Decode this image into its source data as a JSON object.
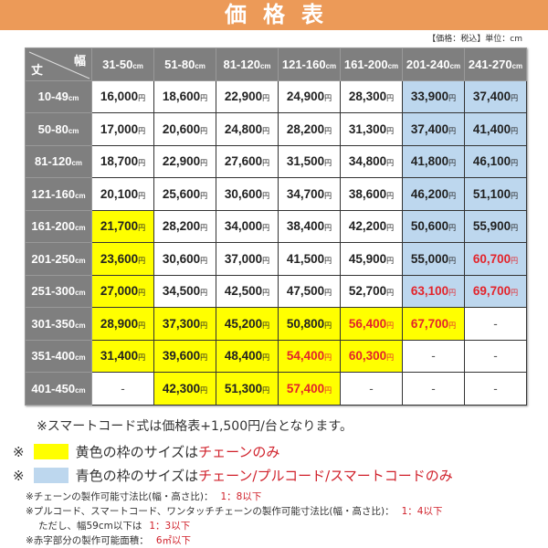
{
  "title": "価格表",
  "unit_note": "【価格：税込】単位：cm",
  "corner": {
    "width_label": "幅",
    "height_label": "丈"
  },
  "unit_cm": "cm",
  "currency": "円",
  "colors": {
    "white": "#ffffff",
    "yellow": "#ffff00",
    "blue": "#bdd7ee",
    "red_text": "#e3242b",
    "header": "#7f7f7f",
    "title_bar": "#ec9a58"
  },
  "columns": [
    "31-50",
    "51-80",
    "81-120",
    "121-160",
    "161-200",
    "201-240",
    "241-270"
  ],
  "rows": [
    {
      "label": "10-49",
      "values": [
        "16,000",
        "18,600",
        "22,900",
        "24,900",
        "28,300",
        "33,900",
        "37,400"
      ],
      "fills": "wwwwwbb",
      "red": [
        0,
        0,
        0,
        0,
        0,
        0,
        0
      ]
    },
    {
      "label": "50-80",
      "values": [
        "17,000",
        "20,600",
        "24,800",
        "28,200",
        "31,300",
        "37,400",
        "41,400"
      ],
      "fills": "wwwwwbb",
      "red": [
        0,
        0,
        0,
        0,
        0,
        0,
        0
      ]
    },
    {
      "label": "81-120",
      "values": [
        "18,700",
        "22,900",
        "27,600",
        "31,500",
        "34,800",
        "41,800",
        "46,100"
      ],
      "fills": "wwwwwbb",
      "red": [
        0,
        0,
        0,
        0,
        0,
        0,
        0
      ]
    },
    {
      "label": "121-160",
      "values": [
        "20,100",
        "25,600",
        "30,600",
        "34,700",
        "38,600",
        "46,200",
        "51,100"
      ],
      "fills": "wwwwwbb",
      "red": [
        0,
        0,
        0,
        0,
        0,
        0,
        0
      ]
    },
    {
      "label": "161-200",
      "values": [
        "21,700",
        "28,200",
        "34,000",
        "38,400",
        "42,200",
        "50,600",
        "55,900"
      ],
      "fills": "ywwwwbb",
      "red": [
        0,
        0,
        0,
        0,
        0,
        0,
        0
      ]
    },
    {
      "label": "201-250",
      "values": [
        "23,600",
        "30,600",
        "37,000",
        "41,500",
        "45,900",
        "55,000",
        "60,700"
      ],
      "fills": "ywwwwbb",
      "red": [
        0,
        0,
        0,
        0,
        0,
        0,
        1
      ]
    },
    {
      "label": "251-300",
      "values": [
        "27,000",
        "34,500",
        "42,500",
        "47,500",
        "52,700",
        "63,100",
        "69,700"
      ],
      "fills": "ywwwwbb",
      "red": [
        0,
        0,
        0,
        0,
        0,
        1,
        1
      ]
    },
    {
      "label": "301-350",
      "values": [
        "28,900",
        "37,300",
        "45,200",
        "50,800",
        "56,400",
        "67,700",
        "-"
      ],
      "fills": "yyyyyyw",
      "red": [
        0,
        0,
        0,
        0,
        1,
        1,
        0
      ]
    },
    {
      "label": "351-400",
      "values": [
        "31,400",
        "39,600",
        "48,400",
        "54,400",
        "60,300",
        "-",
        "-"
      ],
      "fills": "yyyyyww",
      "red": [
        0,
        0,
        0,
        1,
        1,
        0,
        0
      ]
    },
    {
      "label": "401-450",
      "values": [
        "-",
        "42,300",
        "51,300",
        "57,400",
        "-",
        "-",
        "-"
      ],
      "fills": "wyyywww",
      "red": [
        0,
        0,
        0,
        1,
        0,
        0,
        0
      ]
    }
  ],
  "notes": {
    "smartcord": "※スマートコード式は価格表+1,500円/台となります。",
    "yellow_prefix": "※",
    "yellow_text": "黄色の枠のサイズは",
    "yellow_red": "チェーンのみ",
    "blue_prefix": "※",
    "blue_text": "青色の枠のサイズは",
    "blue_red": "チェーン/プルコード/スマートコードのみ",
    "chain_ratio": "※チェーンの製作可能寸法比(幅・高さ比)：",
    "chain_ratio_value": "1：8以下",
    "pull_ratio": "※プルコード、スマートコード、ワンタッチチェーンの製作可能寸法比(幅・高さ比)：",
    "pull_ratio_value": "1：4以下",
    "narrow": "ただし、幅59cm以下は",
    "narrow_value": "1：3以下",
    "red_area": "※赤字部分の製作可能面積：",
    "red_area_value": "6㎡以下"
  }
}
